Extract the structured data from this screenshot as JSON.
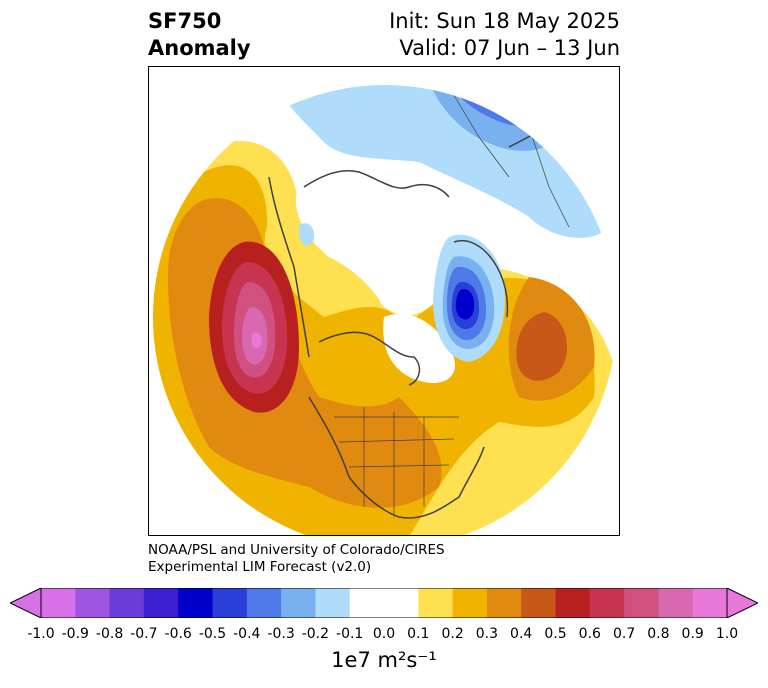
{
  "title": {
    "left_line1": "SF750",
    "left_line2": "Anomaly",
    "right_line1": "Init: Sun 18 May 2025",
    "right_line2": "Valid: 07 Jun – 13 Jun"
  },
  "credit": {
    "line1": "NOAA/PSL and University of Colorado/CIRES",
    "line2": "Experimental LIM Forecast (v2.0)"
  },
  "colorbar": {
    "label": "1e7 m²s⁻¹",
    "ticks": [
      "-1.0",
      "-0.9",
      "-0.8",
      "-0.7",
      "-0.6",
      "-0.5",
      "-0.4",
      "-0.3",
      "-0.2",
      "-0.1",
      "0.0",
      "0.1",
      "0.2",
      "0.3",
      "0.4",
      "0.5",
      "0.6",
      "0.7",
      "0.8",
      "0.9",
      "1.0"
    ],
    "colors": [
      "#d870e8",
      "#9e55e0",
      "#6a3cd8",
      "#3a1ed0",
      "#0000cc",
      "#2a3fd8",
      "#4f78e8",
      "#78b0f0",
      "#aedcfa",
      "#ffffff",
      "#ffffff",
      "#ffe050",
      "#f0b400",
      "#e08a10",
      "#c85818",
      "#b82020",
      "#c83450",
      "#d05080",
      "#d868b0",
      "#e878d8"
    ],
    "extend_low_color": "#d870e8",
    "extend_high_color": "#e878d8"
  },
  "map": {
    "projection": "north-polar-stereographic",
    "background": "#ffffff",
    "coastline_color": "#404040"
  }
}
